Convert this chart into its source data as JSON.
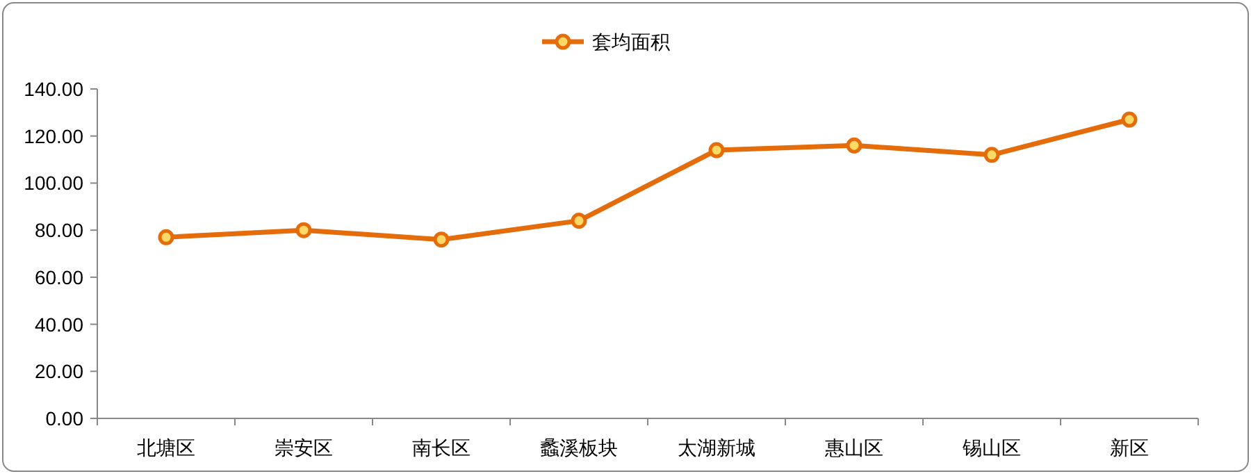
{
  "chart_data": {
    "type": "line",
    "categories": [
      "北塘区",
      "崇安区",
      "南长区",
      "蠡溪板块",
      "太湖新城",
      "惠山区",
      "锡山区",
      "新区"
    ],
    "series": [
      {
        "name": "套均面积",
        "color": "#e46c0a",
        "values": [
          77,
          80,
          76,
          84,
          114,
          116,
          112,
          127
        ]
      }
    ],
    "ylim": [
      0,
      140
    ],
    "yticks": [
      {
        "value": 0,
        "label": "0.00"
      },
      {
        "value": 20,
        "label": "20.00"
      },
      {
        "value": 40,
        "label": "40.00"
      },
      {
        "value": 60,
        "label": "60.00"
      },
      {
        "value": 80,
        "label": "80.00"
      },
      {
        "value": 100,
        "label": "100.00"
      },
      {
        "value": 120,
        "label": "120.00"
      },
      {
        "value": 140,
        "label": "140.00"
      }
    ],
    "legend": "top",
    "marker": "circle",
    "grid": false
  }
}
